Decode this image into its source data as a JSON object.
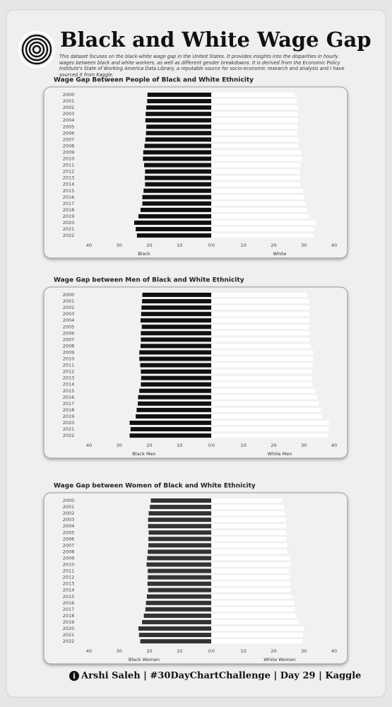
{
  "header": {
    "title": "Black and White Wage Gap",
    "description": "This dataset focuses on the black-white wage gap in the United States. It provides insights into the disparities in hourly wages between black and white workers, as well as different gender breakdowns. It is derived from the Economic Policy Institute's State of Working America Data Library, a reputable source for socio-economic research and analysis and I have sourced it from Kaggle."
  },
  "chart_data": [
    {
      "type": "butterfly",
      "title": "Wage Gap Between People of Black and White Ethnicity",
      "categories": [
        "2000",
        "2001",
        "2002",
        "2003",
        "2004",
        "2005",
        "2006",
        "2007",
        "2008",
        "2009",
        "2010",
        "2011",
        "2012",
        "2013",
        "2014",
        "2015",
        "2016",
        "2017",
        "2018",
        "2019",
        "2020",
        "2021",
        "2022"
      ],
      "series": [
        {
          "name": "Black",
          "color": "#111111",
          "values": [
            21.1,
            21.2,
            21.5,
            21.7,
            21.8,
            21.5,
            21.6,
            21.8,
            22.1,
            22.5,
            22.6,
            22.2,
            21.9,
            22.0,
            21.9,
            22.4,
            22.8,
            22.8,
            23.4,
            24.1,
            25.5,
            25.0,
            24.6
          ]
        },
        {
          "name": "White",
          "color": "#ffffff",
          "values": [
            27.6,
            28.1,
            28.4,
            28.5,
            28.5,
            28.4,
            28.4,
            28.7,
            28.6,
            29.6,
            29.8,
            29.3,
            29.2,
            29.3,
            29.3,
            30.1,
            30.6,
            31.0,
            31.5,
            32.0,
            34.6,
            34.0,
            33.7
          ]
        }
      ],
      "xlim": [
        0,
        40
      ],
      "xticks": [
        0,
        10,
        20,
        30,
        40
      ]
    },
    {
      "type": "butterfly",
      "title": "Wage Gap between Men of Black and White Ethnicity",
      "categories": [
        "2000",
        "2001",
        "2002",
        "2003",
        "2004",
        "2005",
        "2006",
        "2007",
        "2008",
        "2009",
        "2010",
        "2011",
        "2012",
        "2013",
        "2014",
        "2015",
        "2016",
        "2017",
        "2018",
        "2019",
        "2020",
        "2021",
        "2022"
      ],
      "series": [
        {
          "name": "Black Men",
          "color": "#111111",
          "values": [
            22.8,
            22.9,
            23.1,
            23.2,
            23.4,
            23.0,
            23.3,
            23.3,
            23.4,
            23.8,
            23.8,
            23.5,
            23.3,
            23.2,
            23.3,
            23.8,
            24.2,
            24.3,
            24.7,
            25.0,
            27.0,
            26.7,
            27.0
          ]
        },
        {
          "name": "White Men",
          "color": "#ffffff",
          "values": [
            31.6,
            32.3,
            32.3,
            32.3,
            32.3,
            32.2,
            32.3,
            32.5,
            32.7,
            33.6,
            33.5,
            33.3,
            33.2,
            33.2,
            33.3,
            34.3,
            34.9,
            35.3,
            36.1,
            36.6,
            38.7,
            38.6,
            38.6
          ]
        }
      ],
      "xlim": [
        0,
        40
      ],
      "xticks": [
        0,
        10,
        20,
        30,
        40
      ]
    },
    {
      "type": "butterfly",
      "title": "Wage Gap between Women of Black and White Ethnicity",
      "categories": [
        "2000",
        "2001",
        "2002",
        "2003",
        "2004",
        "2005",
        "2006",
        "2007",
        "2008",
        "2009",
        "2010",
        "2011",
        "2012",
        "2013",
        "2014",
        "2015",
        "2016",
        "2017",
        "2018",
        "2019",
        "2020",
        "2021",
        "2022"
      ],
      "series": [
        {
          "name": "Black Women",
          "color": "#333333",
          "values": [
            20.0,
            20.3,
            20.7,
            20.9,
            20.9,
            20.7,
            20.8,
            20.8,
            21.0,
            21.2,
            21.4,
            21.0,
            21.0,
            21.1,
            20.9,
            21.3,
            21.6,
            21.8,
            22.3,
            22.9,
            24.1,
            23.9,
            23.5
          ]
        },
        {
          "name": "White Women",
          "color": "#ffffff",
          "values": [
            23.2,
            23.8,
            24.2,
            24.5,
            24.6,
            24.6,
            24.6,
            24.9,
            25.0,
            25.9,
            26.1,
            25.8,
            25.8,
            25.9,
            26.0,
            26.6,
            27.3,
            27.6,
            28.1,
            28.7,
            30.4,
            30.1,
            29.9
          ]
        }
      ],
      "xlim": [
        0,
        40
      ],
      "xticks": [
        0,
        10,
        20,
        30,
        40
      ]
    }
  ],
  "footer": {
    "credit": "Arshi Saleh | #30DayChartChallenge | Day 29 | Kaggle"
  }
}
